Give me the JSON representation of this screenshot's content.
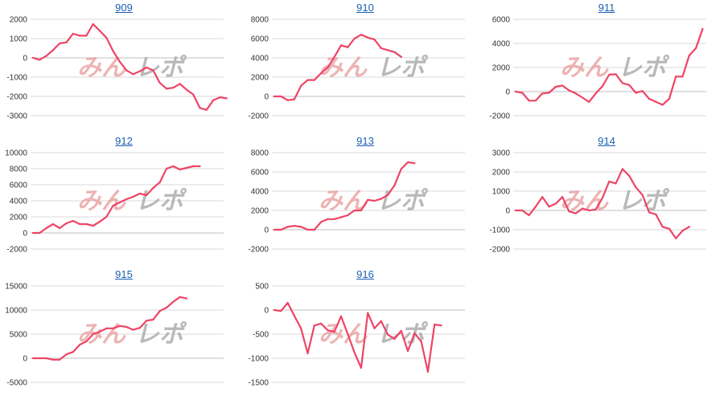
{
  "colors": {
    "line": "#ee4466",
    "grid": "#d9d9d9",
    "title": "#1a5fb4",
    "watermark_a": "#e79a9a",
    "watermark_b": "#a8a8a8"
  },
  "watermark": {
    "part1": "みん",
    "part2": "レポ"
  },
  "chart_data": [
    {
      "type": "line",
      "title": "909",
      "ylim": [
        -3000,
        2000
      ],
      "yticks": [
        2000,
        1000,
        0,
        -1000,
        -2000,
        -3000
      ],
      "grid": true,
      "legend": "none",
      "values": [
        0,
        -100,
        100,
        400,
        750,
        800,
        1250,
        1150,
        1150,
        1750,
        1400,
        1050,
        350,
        -200,
        -650,
        -850,
        -700,
        -500,
        -650,
        -1300,
        -1600,
        -1550,
        -1350,
        -1650,
        -1900,
        -2600,
        -2700,
        -2200,
        -2050,
        -2100
      ]
    },
    {
      "type": "line",
      "title": "910",
      "ylim": [
        -2000,
        8000
      ],
      "yticks": [
        8000,
        6000,
        4000,
        2000,
        0,
        -2000
      ],
      "grid": true,
      "legend": "none",
      "values": [
        0,
        0,
        -400,
        -300,
        1100,
        1700,
        1700,
        2400,
        3000,
        4100,
        5300,
        5100,
        6000,
        6400,
        6100,
        5900,
        5000,
        4800,
        4600,
        4100
      ]
    },
    {
      "type": "line",
      "title": "911",
      "ylim": [
        -2000,
        6000
      ],
      "yticks": [
        6000,
        4000,
        2000,
        0,
        -2000
      ],
      "grid": true,
      "legend": "none",
      "values": [
        0,
        -100,
        -750,
        -750,
        -150,
        -100,
        400,
        500,
        100,
        -150,
        -500,
        -850,
        -150,
        450,
        1400,
        1450,
        700,
        550,
        -100,
        50,
        -600,
        -850,
        -1100,
        -600,
        1250,
        1250,
        3000,
        3600,
        5200
      ]
    },
    {
      "type": "line",
      "title": "912",
      "ylim": [
        -2000,
        10000
      ],
      "yticks": [
        10000,
        8000,
        6000,
        4000,
        2000,
        0,
        -2000
      ],
      "grid": true,
      "legend": "none",
      "values": [
        0,
        0,
        600,
        1100,
        600,
        1200,
        1500,
        1100,
        1100,
        900,
        1400,
        2000,
        3400,
        3800,
        4200,
        4500,
        4900,
        4700,
        5600,
        6300,
        8000,
        8300,
        7900,
        8100,
        8300,
        8300
      ]
    },
    {
      "type": "line",
      "title": "913",
      "ylim": [
        -2000,
        8000
      ],
      "yticks": [
        8000,
        6000,
        4000,
        2000,
        0,
        -2000
      ],
      "grid": true,
      "legend": "none",
      "values": [
        0,
        0,
        300,
        400,
        300,
        0,
        0,
        800,
        1100,
        1100,
        1300,
        1500,
        2000,
        2000,
        3100,
        3000,
        3200,
        3600,
        4600,
        6300,
        7000,
        6900
      ]
    },
    {
      "type": "line",
      "title": "914",
      "ylim": [
        -2000,
        3000
      ],
      "yticks": [
        3000,
        2000,
        1000,
        0,
        -1000,
        -2000
      ],
      "grid": true,
      "legend": "none",
      "values": [
        0,
        0,
        -250,
        200,
        700,
        200,
        350,
        700,
        -50,
        -150,
        100,
        0,
        50,
        650,
        1500,
        1400,
        2150,
        1800,
        1200,
        800,
        -100,
        -200,
        -850,
        -950,
        -1450,
        -1050,
        -850
      ]
    },
    {
      "type": "line",
      "title": "915",
      "ylim": [
        -5000,
        15000
      ],
      "yticks": [
        15000,
        10000,
        5000,
        0,
        -5000
      ],
      "grid": true,
      "legend": "none",
      "values": [
        0,
        0,
        0,
        -300,
        -300,
        800,
        1300,
        2800,
        3500,
        5000,
        5500,
        6200,
        6200,
        6700,
        6500,
        5900,
        6300,
        7800,
        8000,
        9800,
        10500,
        11700,
        12700,
        12400
      ]
    },
    {
      "type": "line",
      "title": "916",
      "ylim": [
        -1500,
        500
      ],
      "yticks": [
        500,
        0,
        -500,
        -1000,
        -1500
      ],
      "grid": true,
      "legend": "none",
      "values": [
        0,
        -20,
        150,
        -120,
        -380,
        -900,
        -320,
        -280,
        -420,
        -450,
        -130,
        -500,
        -880,
        -1200,
        -60,
        -380,
        -230,
        -510,
        -600,
        -430,
        -850,
        -480,
        -650,
        -1280,
        -300,
        -320
      ]
    }
  ]
}
